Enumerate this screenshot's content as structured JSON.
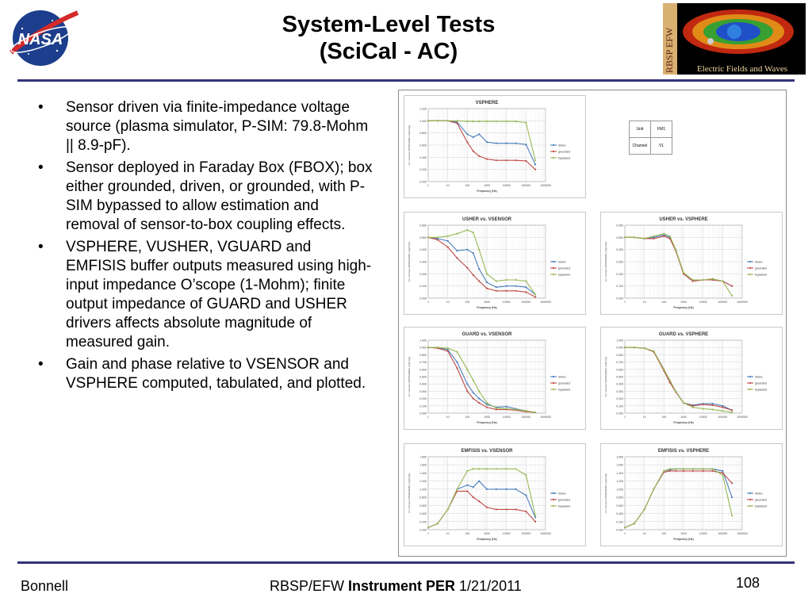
{
  "title_line1": "System-Level Tests",
  "title_line2": "(SciCal - AC)",
  "nasa_logo_text": "NASA",
  "efw_logo": {
    "vertical_text": "RBSP EFW",
    "caption": "Electric Fields and Waves"
  },
  "bullets": [
    "Sensor driven via finite-impedance voltage source (plasma simulator, P-SIM:  79.8-Mohm || 8.9-pF).",
    "Sensor deployed in Faraday Box (FBOX); box either grounded, driven, or grounded, with P-SIM bypassed to allow estimation and removal of sensor-to-box coupling effects.",
    "VSPHERE, VUSHER, VGUARD and EMFISIS buffer outputs measured using high-input impedance O’scope (1-Mohm); finite output impedance of GUARD and USHER drivers affects absolute magnitude of measured gain.",
    "Gain and phase relative to VSENSOR and VSPHERE computed, tabulated, and plotted."
  ],
  "bullet_symbol": "•",
  "footer": {
    "left": "Bonnell",
    "mid_prefix": "RBSP/EFW ",
    "mid_bold": "Instrument PER",
    "mid_suffix": " 1/21/2011",
    "page": "108"
  },
  "colors": {
    "rule": "#33337a",
    "driven": "#4a7ebb",
    "grounded": "#be4b48",
    "bypassed": "#98b954"
  },
  "info_table": [
    [
      "Unit",
      "FM1"
    ],
    [
      "Channel",
      "V1"
    ]
  ],
  "chart_data": [
    {
      "type": "line",
      "title": "VSPHERE",
      "xlabel": "Frequency (Hz)",
      "ylabel": "Vx / Vsensor (PR/SG/EMF) (Vpp/Vpp)",
      "x_log": true,
      "xlim": [
        1,
        1000000
      ],
      "ylim": [
        0,
        1.2
      ],
      "xticks": [
        "1",
        "10",
        "100",
        "1000",
        "10000",
        "100000",
        "1000000"
      ],
      "yticks": [
        "0.000",
        "0.200",
        "0.400",
        "0.600",
        "0.800",
        "1.000",
        "1.200"
      ],
      "x": [
        1,
        3,
        10,
        30,
        100,
        200,
        400,
        1000,
        3000,
        10000,
        30000,
        100000,
        300000
      ],
      "series": [
        {
          "name": "driven",
          "values": [
            1.0,
            1.0,
            1.0,
            0.98,
            0.78,
            0.73,
            0.78,
            0.65,
            0.63,
            0.63,
            0.63,
            0.61,
            0.28
          ]
        },
        {
          "name": "grounded",
          "values": [
            1.0,
            1.0,
            1.0,
            0.96,
            0.65,
            0.5,
            0.42,
            0.37,
            0.35,
            0.35,
            0.35,
            0.34,
            0.2
          ]
        },
        {
          "name": "bypassed",
          "values": [
            1.0,
            1.0,
            1.0,
            1.0,
            0.99,
            0.99,
            0.99,
            0.99,
            0.99,
            0.99,
            0.99,
            0.97,
            0.35
          ]
        }
      ]
    },
    {
      "type": "line",
      "title": "USHER vs. VSENSOR",
      "xlabel": "Frequency (Hz)",
      "ylabel": "Vx / Vsensor (PR/SG/EMF) (Vpp/Vpp)",
      "x_log": true,
      "xlim": [
        1,
        1000000
      ],
      "ylim": [
        0,
        0.6
      ],
      "xticks": [
        "1",
        "10",
        "100",
        "1000",
        "10000",
        "100000",
        "1000000"
      ],
      "yticks": [
        "0.000",
        "0.100",
        "0.200",
        "0.300",
        "0.400",
        "0.500",
        "0.600"
      ],
      "x": [
        1,
        3,
        10,
        30,
        100,
        200,
        400,
        1000,
        3000,
        10000,
        30000,
        100000,
        300000
      ],
      "series": [
        {
          "name": "driven",
          "values": [
            0.5,
            0.49,
            0.47,
            0.39,
            0.4,
            0.37,
            0.24,
            0.13,
            0.09,
            0.1,
            0.1,
            0.09,
            0.03
          ]
        },
        {
          "name": "grounded",
          "values": [
            0.5,
            0.48,
            0.42,
            0.33,
            0.25,
            0.19,
            0.14,
            0.08,
            0.06,
            0.06,
            0.06,
            0.05,
            0.01
          ]
        },
        {
          "name": "bypassed",
          "values": [
            0.5,
            0.5,
            0.51,
            0.53,
            0.56,
            0.54,
            0.4,
            0.2,
            0.14,
            0.15,
            0.15,
            0.14,
            0.03
          ]
        }
      ]
    },
    {
      "type": "line",
      "title": "USHER vs. VSPHERE",
      "xlabel": "Frequency (Hz)",
      "ylabel": "Vx / Vsensor (PR/SG/EMF) (Vpp/Vpp)",
      "x_log": true,
      "xlim": [
        1,
        1000000
      ],
      "ylim": [
        0,
        0.6
      ],
      "xticks": [
        "1",
        "10",
        "100",
        "1000",
        "10000",
        "100000",
        "1000000"
      ],
      "yticks": [
        "0.000",
        "0.100",
        "0.200",
        "0.300",
        "0.400",
        "0.500",
        "0.600"
      ],
      "x": [
        1,
        3,
        10,
        30,
        100,
        200,
        400,
        1000,
        3000,
        10000,
        30000,
        100000,
        300000
      ],
      "series": [
        {
          "name": "driven",
          "values": [
            0.5,
            0.5,
            0.49,
            0.5,
            0.52,
            0.5,
            0.4,
            0.2,
            0.14,
            0.15,
            0.15,
            0.14,
            0.1
          ]
        },
        {
          "name": "grounded",
          "values": [
            0.5,
            0.5,
            0.49,
            0.49,
            0.51,
            0.49,
            0.39,
            0.2,
            0.14,
            0.15,
            0.15,
            0.14,
            0.1
          ]
        },
        {
          "name": "bypassed",
          "values": [
            0.5,
            0.5,
            0.49,
            0.51,
            0.53,
            0.51,
            0.4,
            0.21,
            0.15,
            0.15,
            0.16,
            0.14,
            0.02
          ]
        }
      ]
    },
    {
      "type": "line",
      "title": "GUARD vs. VSENSOR",
      "xlabel": "Frequency (Hz)",
      "ylabel": "Vx / Vsensor (PR/SG/EMF) (Vpp/Vpp)",
      "x_log": true,
      "xlim": [
        1,
        1000000
      ],
      "ylim": [
        0,
        1.0
      ],
      "xticks": [
        "1",
        "10",
        "100",
        "1000",
        "10000",
        "100000",
        "1000000"
      ],
      "yticks": [
        "0.000",
        "0.100",
        "0.200",
        "0.300",
        "0.400",
        "0.500",
        "0.600",
        "0.700",
        "0.800",
        "0.900",
        "1.000"
      ],
      "x": [
        1,
        3,
        10,
        30,
        100,
        200,
        400,
        1000,
        3000,
        10000,
        30000,
        100000,
        300000
      ],
      "series": [
        {
          "name": "driven",
          "values": [
            0.9,
            0.9,
            0.87,
            0.7,
            0.4,
            0.28,
            0.2,
            0.12,
            0.08,
            0.09,
            0.06,
            0.03,
            0.01
          ]
        },
        {
          "name": "grounded",
          "values": [
            0.9,
            0.89,
            0.85,
            0.62,
            0.3,
            0.2,
            0.14,
            0.08,
            0.05,
            0.05,
            0.04,
            0.02,
            0.01
          ]
        },
        {
          "name": "bypassed",
          "values": [
            0.9,
            0.9,
            0.89,
            0.84,
            0.6,
            0.45,
            0.3,
            0.14,
            0.07,
            0.06,
            0.05,
            0.03,
            0.01
          ]
        }
      ]
    },
    {
      "type": "line",
      "title": "GUARD vs. VSPHERE",
      "xlabel": "Frequency (Hz)",
      "ylabel": "Vx / Vsensor (PR/SG/EMF) (Vpp/Vpp)",
      "x_log": true,
      "xlim": [
        1,
        1000000
      ],
      "ylim": [
        0,
        1.0
      ],
      "xticks": [
        "1",
        "10",
        "100",
        "1000",
        "10000",
        "100000",
        "1000000"
      ],
      "yticks": [
        "0.000",
        "0.100",
        "0.200",
        "0.300",
        "0.400",
        "0.500",
        "0.600",
        "0.700",
        "0.800",
        "0.900",
        "1.000"
      ],
      "x": [
        1,
        3,
        10,
        30,
        100,
        200,
        400,
        1000,
        3000,
        10000,
        30000,
        100000,
        300000
      ],
      "series": [
        {
          "name": "driven",
          "values": [
            0.9,
            0.9,
            0.89,
            0.85,
            0.6,
            0.43,
            0.3,
            0.14,
            0.11,
            0.13,
            0.13,
            0.1,
            0.04
          ]
        },
        {
          "name": "grounded",
          "values": [
            0.9,
            0.9,
            0.89,
            0.84,
            0.58,
            0.42,
            0.29,
            0.14,
            0.1,
            0.12,
            0.11,
            0.08,
            0.04
          ]
        },
        {
          "name": "bypassed",
          "values": [
            0.9,
            0.9,
            0.89,
            0.85,
            0.6,
            0.45,
            0.3,
            0.14,
            0.08,
            0.06,
            0.05,
            0.03,
            0.01
          ]
        }
      ]
    },
    {
      "type": "line",
      "title": "EMFISIS vs. VSENSOR",
      "xlabel": "Frequency (Hz)",
      "ylabel": "Vx / Vsensor (PR/SG/EMF) (Vpp/Vpp)",
      "x_log": true,
      "xlim": [
        1,
        1000000
      ],
      "ylim": [
        0,
        1.8
      ],
      "xticks": [
        "1",
        "10",
        "100",
        "1000",
        "10000",
        "100000",
        "1000000"
      ],
      "yticks": [
        "0.000",
        "0.200",
        "0.400",
        "0.600",
        "0.800",
        "1.000",
        "1.200",
        "1.400",
        "1.600",
        "1.800"
      ],
      "x": [
        1,
        3,
        10,
        30,
        100,
        200,
        400,
        1000,
        3000,
        10000,
        30000,
        100000,
        300000
      ],
      "series": [
        {
          "name": "driven",
          "values": [
            0.05,
            0.15,
            0.5,
            1.0,
            1.1,
            1.05,
            1.2,
            1.0,
            1.0,
            1.0,
            1.0,
            0.85,
            0.3
          ]
        },
        {
          "name": "grounded",
          "values": [
            0.05,
            0.15,
            0.5,
            0.95,
            0.95,
            0.8,
            0.7,
            0.55,
            0.5,
            0.5,
            0.5,
            0.45,
            0.2
          ]
        },
        {
          "name": "bypassed",
          "values": [
            0.05,
            0.15,
            0.5,
            1.0,
            1.45,
            1.5,
            1.5,
            1.5,
            1.5,
            1.5,
            1.5,
            1.35,
            0.35
          ]
        }
      ]
    },
    {
      "type": "line",
      "title": "EMFISIS vs. VSPHERE",
      "xlabel": "Frequency (Hz)",
      "ylabel": "Vx / Vsensor (PR/SG/EMF) (Vpp/Vpp)",
      "x_log": true,
      "xlim": [
        1,
        1000000
      ],
      "ylim": [
        0,
        1.8
      ],
      "xticks": [
        "1",
        "10",
        "100",
        "1000",
        "10000",
        "100000",
        "1000000"
      ],
      "yticks": [
        "0.000",
        "0.200",
        "0.400",
        "0.600",
        "0.800",
        "1.000",
        "1.200",
        "1.400",
        "1.600",
        "1.800"
      ],
      "x": [
        1,
        3,
        10,
        30,
        100,
        200,
        400,
        1000,
        3000,
        10000,
        30000,
        100000,
        300000
      ],
      "series": [
        {
          "name": "driven",
          "values": [
            0.05,
            0.15,
            0.5,
            1.0,
            1.45,
            1.48,
            1.5,
            1.5,
            1.5,
            1.5,
            1.5,
            1.45,
            0.8
          ]
        },
        {
          "name": "grounded",
          "values": [
            0.05,
            0.15,
            0.5,
            1.0,
            1.42,
            1.45,
            1.45,
            1.45,
            1.45,
            1.45,
            1.45,
            1.4,
            1.15
          ]
        },
        {
          "name": "bypassed",
          "values": [
            0.05,
            0.15,
            0.5,
            1.0,
            1.45,
            1.5,
            1.5,
            1.5,
            1.5,
            1.5,
            1.5,
            1.35,
            0.35
          ]
        }
      ]
    }
  ]
}
